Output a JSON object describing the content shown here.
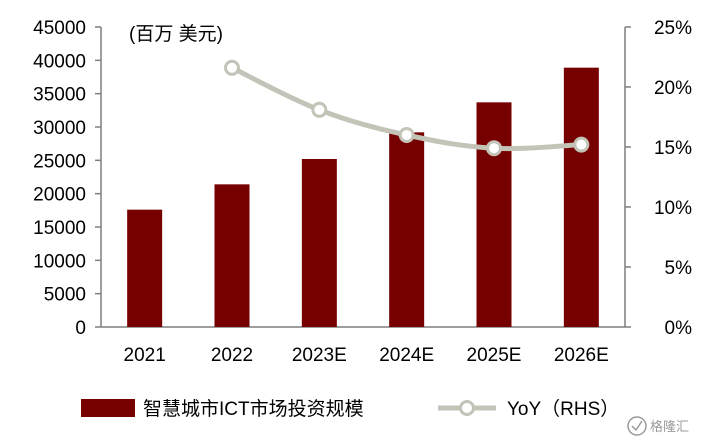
{
  "chart_data": {
    "type": "bar+line",
    "unit_label": "(百万 美元)",
    "categories": [
      "2021",
      "2022",
      "2023E",
      "2024E",
      "2025E",
      "2026E"
    ],
    "series": [
      {
        "name": "智慧城市ICT市场投资规模",
        "type": "bar",
        "axis": "left",
        "color": "#760000",
        "values": [
          17600,
          21400,
          25200,
          29200,
          33700,
          38900
        ]
      },
      {
        "name": "YoY（RHS）",
        "type": "line",
        "axis": "right",
        "color": "#c4c3b8",
        "values": [
          null,
          21.6,
          18.1,
          16.0,
          14.9,
          15.2
        ]
      }
    ],
    "y_left": {
      "ylim": [
        0,
        45000
      ],
      "ticks": [
        "0",
        "5000",
        "10000",
        "15000",
        "20000",
        "25000",
        "30000",
        "35000",
        "40000",
        "45000"
      ]
    },
    "y_right": {
      "ylim": [
        0,
        25
      ],
      "ticks": [
        "0%",
        "5%",
        "10%",
        "15%",
        "20%",
        "25%"
      ]
    },
    "legend_position": "bottom",
    "grid": false
  },
  "watermark": {
    "text": "格隆汇",
    "icon": "watermark-logo-icon"
  }
}
